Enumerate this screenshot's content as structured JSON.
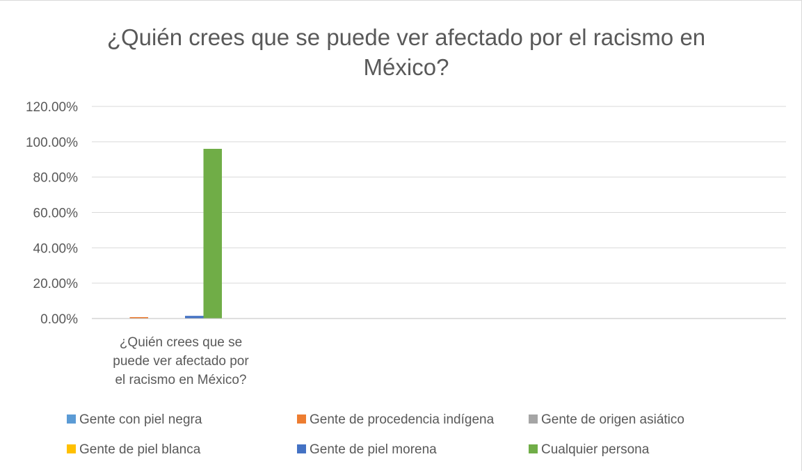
{
  "chart_data": {
    "type": "bar",
    "title_lines": [
      "¿Quién crees que se puede ver afectado por el racismo en",
      "México?"
    ],
    "categories": [
      "¿Quién crees que se puede ver afectado por el racismo en México?"
    ],
    "category_label_lines": [
      "¿Quién crees que se",
      "puede ver afectado por",
      "el racismo en México?"
    ],
    "ylim": [
      0,
      1.2
    ],
    "ytick_values": [
      0,
      0.2,
      0.4,
      0.6,
      0.8,
      1.0,
      1.2
    ],
    "ytick_labels": [
      "0.00%",
      "20.00%",
      "40.00%",
      "60.00%",
      "80.00%",
      "100.00%",
      "120.00%"
    ],
    "grid": true,
    "legend_position": "bottom",
    "series": [
      {
        "name": "Gente con piel negra",
        "color": "#5b9bd5",
        "values": [
          0
        ]
      },
      {
        "name": "Gente de procedencia indígena",
        "color": "#ed7d31",
        "values": [
          0.008
        ]
      },
      {
        "name": "Gente de origen asiático",
        "color": "#a5a5a5",
        "values": [
          0
        ]
      },
      {
        "name": "Gente de piel blanca",
        "color": "#ffc000",
        "values": [
          0
        ]
      },
      {
        "name": "Gente de piel morena",
        "color": "#4472c4",
        "values": [
          0.015
        ]
      },
      {
        "name": "Cualquier persona",
        "color": "#70ad47",
        "values": [
          0.96
        ]
      }
    ]
  }
}
